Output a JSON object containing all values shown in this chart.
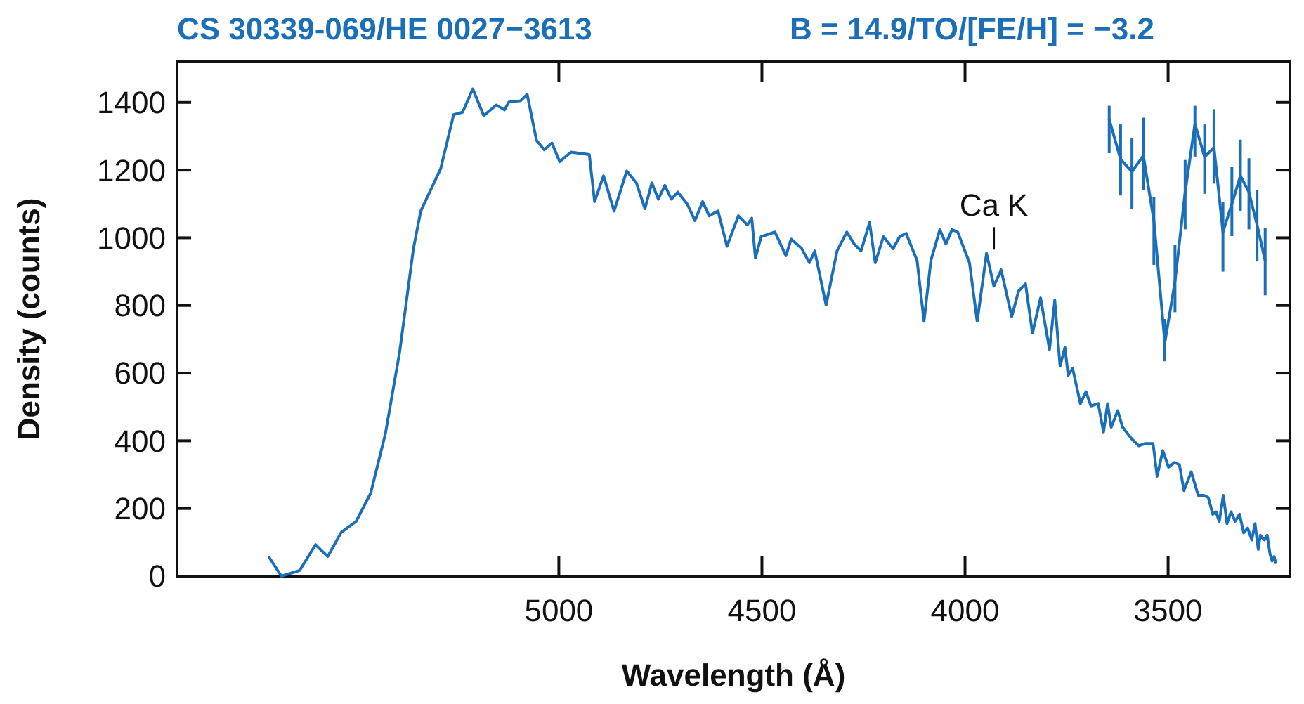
{
  "chart_data": {
    "type": "line",
    "title": "CS 30339-069/HE 0027−3613",
    "subtitle": "B = 14.9/TO/[FE/H] = −3.2",
    "xlabel": "Wavelength (Å)",
    "ylabel": "Density (counts)",
    "xlim": [
      5940,
      3200
    ],
    "xticks": [
      5000,
      4500,
      4000,
      3500
    ],
    "ylim": [
      0,
      1520
    ],
    "yticks": [
      0,
      200,
      400,
      600,
      800,
      1000,
      1200,
      1400
    ],
    "line_style": "solid",
    "marker": "none",
    "series": [
      {
        "color": "#1b6fb8",
        "x": [
          5713,
          5683,
          5638,
          5599,
          5569,
          5536,
          5499,
          5463,
          5427,
          5392,
          5358,
          5340,
          5302,
          5291,
          5259,
          5237,
          5212,
          5185,
          5154,
          5134,
          5123,
          5094,
          5078,
          5055,
          5036,
          5017,
          4998,
          4970,
          4925,
          4912,
          4890,
          4864,
          4833,
          4809,
          4788,
          4771,
          4755,
          4739,
          4723,
          4707,
          4684,
          4665,
          4646,
          4630,
          4608,
          4586,
          4558,
          4536,
          4525,
          4516,
          4502,
          4468,
          4441,
          4428,
          4402,
          4383,
          4370,
          4342,
          4315,
          4291,
          4273,
          4256,
          4235,
          4221,
          4201,
          4177,
          4161,
          4145,
          4118,
          4101,
          4084,
          4062,
          4047,
          4032,
          4018,
          3989,
          3970,
          3947,
          3929,
          3911,
          3885,
          3868,
          3851,
          3834,
          3814,
          3792,
          3779,
          3766,
          3754,
          3746,
          3735,
          3716,
          3702,
          3690,
          3672,
          3659,
          3649,
          3640,
          3624,
          3612,
          3589,
          3572,
          3556,
          3537,
          3527,
          3513,
          3499,
          3484,
          3472,
          3461,
          3443,
          3426,
          3412,
          3401,
          3390,
          3382,
          3374,
          3364,
          3355,
          3345,
          3335,
          3324,
          3314,
          3304,
          3294,
          3286,
          3278,
          3273,
          3263,
          3256,
          3249,
          3244,
          3239,
          3235
        ],
        "values": [
          55,
          0,
          17,
          93,
          58,
          129,
          162,
          246,
          421,
          662,
          968,
          1079,
          1176,
          1204,
          1364,
          1371,
          1440,
          1361,
          1392,
          1378,
          1401,
          1405,
          1424,
          1288,
          1260,
          1280,
          1225,
          1253,
          1246,
          1107,
          1183,
          1079,
          1197,
          1162,
          1086,
          1162,
          1114,
          1155,
          1114,
          1135,
          1100,
          1051,
          1107,
          1065,
          1079,
          975,
          1065,
          1038,
          1058,
          940,
          1003,
          1017,
          947,
          996,
          968,
          926,
          961,
          801,
          961,
          1017,
          982,
          961,
          1045,
          926,
          1003,
          968,
          1003,
          1013,
          933,
          753,
          933,
          1024,
          982,
          1024,
          1017,
          926,
          753,
          954,
          857,
          905,
          767,
          843,
          864,
          718,
          822,
          670,
          815,
          621,
          676,
          593,
          614,
          510,
          545,
          503,
          510,
          426,
          510,
          440,
          489,
          440,
          405,
          385,
          392,
          392,
          295,
          371,
          322,
          336,
          329,
          253,
          308,
          239,
          239,
          232,
          183,
          190,
          162,
          239,
          155,
          190,
          162,
          183,
          128,
          142,
          107,
          155,
          79,
          121,
          107,
          121,
          65,
          45,
          58,
          40
        ]
      },
      {
        "color": "#1b6fb8",
        "x": [
          3645,
          3617,
          3589,
          3561,
          3535,
          3508,
          3483,
          3458,
          3434,
          3410,
          3387,
          3365,
          3343,
          3322,
          3301,
          3281,
          3261
        ],
        "values": [
          1350,
          1232,
          1195,
          1243,
          1051,
          690,
          871,
          1135,
          1336,
          1239,
          1267,
          1017,
          1100,
          1183,
          1135,
          1038,
          933
        ],
        "errors": [
          [
            1250,
            1390
          ],
          [
            1125,
            1335
          ],
          [
            1085,
            1295
          ],
          [
            1140,
            1355
          ],
          [
            920,
            1120
          ],
          [
            635,
            760
          ],
          [
            780,
            980
          ],
          [
            1025,
            1230
          ],
          [
            1240,
            1390
          ],
          [
            1130,
            1335
          ],
          [
            1160,
            1380
          ],
          [
            900,
            1105
          ],
          [
            1005,
            1210
          ],
          [
            1080,
            1290
          ],
          [
            1025,
            1235
          ],
          [
            930,
            1140
          ],
          [
            830,
            1030
          ]
        ]
      }
    ],
    "annotations": [
      {
        "text": "Ca K",
        "x": 3929,
        "y": 857
      }
    ]
  }
}
